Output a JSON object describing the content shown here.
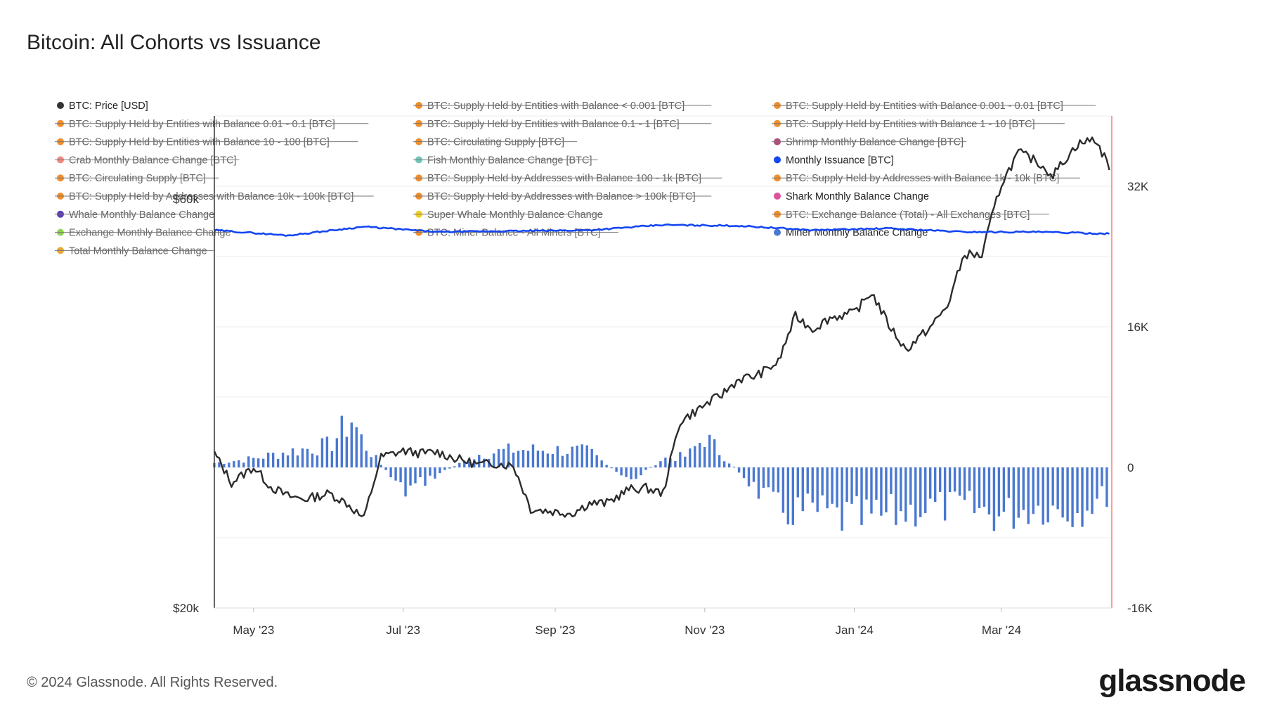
{
  "title": "Bitcoin: All Cohorts vs Issuance",
  "footer": "© 2024 Glassnode. All Rights Reserved.",
  "logo": "glassnode",
  "colors": {
    "price": "#2b2b2b",
    "issuance": "#1446f2",
    "miner_bars": "#4a78d0",
    "right_axis": "#f08080",
    "grid": "#ececec"
  },
  "legend": [
    {
      "label": "BTC: Price [USD]",
      "color": "#333333",
      "active": true
    },
    {
      "label": "BTC: Supply Held by Entities with Balance < 0.001 [BTC]",
      "color": "#f28e2b",
      "active": false
    },
    {
      "label": "BTC: Supply Held by Entities with Balance 0.001 - 0.01 [BTC]",
      "color": "#f28e2b",
      "active": false
    },
    {
      "label": "BTC: Supply Held by Entities with Balance 0.01 - 0.1 [BTC]",
      "color": "#f28e2b",
      "active": false
    },
    {
      "label": "BTC: Supply Held by Entities with Balance 0.1 - 1 [BTC]",
      "color": "#f28e2b",
      "active": false
    },
    {
      "label": "BTC: Supply Held by Entities with Balance 1 - 10 [BTC]",
      "color": "#f28e2b",
      "active": false
    },
    {
      "label": "BTC: Supply Held by Entities with Balance 10 - 100 [BTC]",
      "color": "#f28e2b",
      "active": false
    },
    {
      "label": "BTC: Circulating Supply [BTC]",
      "color": "#f28e2b",
      "active": false
    },
    {
      "label": "Shrimp Monthly Balance Change [BTC]",
      "color": "#b5487a",
      "active": false
    },
    {
      "label": "Crab Monthly Balance Change [BTC]",
      "color": "#f08a80",
      "active": false
    },
    {
      "label": "Fish Monthly Balance Change [BTC]",
      "color": "#6fc7b8",
      "active": false
    },
    {
      "label": "Monthly Issuance [BTC]",
      "color": "#1446f2",
      "active": true
    },
    {
      "label": "BTC: Circulating Supply [BTC]",
      "color": "#f28e2b",
      "active": false
    },
    {
      "label": "BTC: Supply Held by Addresses with Balance 100 - 1k [BTC]",
      "color": "#f28e2b",
      "active": false
    },
    {
      "label": "BTC: Supply Held by Addresses with Balance 1k - 10k [BTC]",
      "color": "#f28e2b",
      "active": false
    },
    {
      "label": "BTC: Supply Held by Addresses with Balance 10k - 100k [BTC]",
      "color": "#f28e2b",
      "active": false
    },
    {
      "label": "BTC: Supply Held by Addresses with Balance > 100k [BTC]",
      "color": "#f28e2b",
      "active": false
    },
    {
      "label": "Shark Monthly Balance Change",
      "color": "#e0509a",
      "active": true
    },
    {
      "label": "Whale Monthly Balance Change",
      "color": "#5b3fb5",
      "active": false
    },
    {
      "label": "Super Whale Monthly Balance Change",
      "color": "#f0d020",
      "active": false
    },
    {
      "label": "BTC: Exchange Balance (Total) - All Exchanges [BTC]",
      "color": "#f28e2b",
      "active": false
    },
    {
      "label": "Exchange Monthly Balance Change",
      "color": "#8fd14f",
      "active": false
    },
    {
      "label": "BTC: Miner Balance - All Miners [BTC]",
      "color": "#f28e2b",
      "active": false
    },
    {
      "label": "Miner Monthly Balance Change",
      "color": "#4a78d0",
      "active": true
    },
    {
      "label": "Total Monthly Balance Change",
      "color": "#e8a838",
      "active": false
    }
  ],
  "chart_data": {
    "type": "line",
    "title": "Bitcoin: All Cohorts vs Issuance",
    "x_ticks": [
      "May '23",
      "Jul '23",
      "Sep '23",
      "Nov '23",
      "Jan '24",
      "Mar '24"
    ],
    "x_range": [
      "2023-04-15",
      "2024-04-15"
    ],
    "left_axis": {
      "scale": "log",
      "ticks": [
        "$20k",
        "$60k"
      ],
      "ylim": [
        20000,
        75000
      ]
    },
    "right_axis": {
      "scale": "linear",
      "ticks": [
        "-16K",
        "0",
        "16K",
        "32K"
      ],
      "ylim": [
        -16000,
        40000
      ]
    },
    "grid": true,
    "series": [
      {
        "name": "BTC: Price [USD]",
        "axis": "left",
        "style": "line",
        "x": [
          "2023-04-15",
          "2023-04-22",
          "2023-05-01",
          "2023-05-08",
          "2023-05-15",
          "2023-05-22",
          "2023-06-01",
          "2023-06-08",
          "2023-06-15",
          "2023-06-22",
          "2023-07-01",
          "2023-07-08",
          "2023-07-15",
          "2023-07-22",
          "2023-08-01",
          "2023-08-08",
          "2023-08-15",
          "2023-08-22",
          "2023-09-01",
          "2023-09-08",
          "2023-09-15",
          "2023-09-22",
          "2023-10-01",
          "2023-10-08",
          "2023-10-15",
          "2023-10-22",
          "2023-11-01",
          "2023-11-08",
          "2023-11-15",
          "2023-11-22",
          "2023-12-01",
          "2023-12-08",
          "2023-12-15",
          "2023-12-22",
          "2024-01-01",
          "2024-01-08",
          "2024-01-15",
          "2024-01-22",
          "2024-02-01",
          "2024-02-08",
          "2024-02-15",
          "2024-02-22",
          "2024-03-01",
          "2024-03-08",
          "2024-03-15",
          "2024-03-22",
          "2024-04-01",
          "2024-04-08",
          "2024-04-14"
        ],
        "values": [
          30300,
          28000,
          29200,
          27700,
          27000,
          26800,
          27200,
          26500,
          25400,
          30000,
          30500,
          30300,
          30400,
          29900,
          29400,
          29500,
          29300,
          26100,
          25900,
          25800,
          26500,
          26500,
          27500,
          27600,
          27200,
          33000,
          34500,
          35500,
          37000,
          37300,
          38700,
          43800,
          42300,
          43600,
          44200,
          46700,
          42800,
          40000,
          42500,
          45000,
          51800,
          51500,
          62500,
          68000,
          66500,
          64000,
          69500,
          70500,
          65500
        ]
      },
      {
        "name": "Monthly Issuance [BTC]",
        "axis": "right",
        "style": "line",
        "x": [
          "2023-04-15",
          "2023-05-15",
          "2023-06-15",
          "2023-07-15",
          "2023-08-15",
          "2023-09-15",
          "2023-10-15",
          "2023-11-15",
          "2023-12-15",
          "2024-01-15",
          "2024-02-15",
          "2024-03-15",
          "2024-04-14"
        ],
        "values": [
          27000,
          26400,
          27400,
          26800,
          26900,
          27000,
          27600,
          27500,
          27000,
          27200,
          26800,
          26800,
          26600
        ]
      },
      {
        "name": "Miner Monthly Balance Change",
        "axis": "right",
        "style": "bar",
        "x": [
          "2023-04-15",
          "2023-05-01",
          "2023-05-15",
          "2023-06-01",
          "2023-06-10",
          "2023-06-15",
          "2023-07-01",
          "2023-07-15",
          "2023-08-01",
          "2023-08-15",
          "2023-09-01",
          "2023-09-15",
          "2023-10-01",
          "2023-10-15",
          "2023-10-25",
          "2023-11-01",
          "2023-11-15",
          "2023-12-01",
          "2023-12-15",
          "2024-01-01",
          "2024-01-15",
          "2024-02-01",
          "2024-02-15",
          "2024-03-01",
          "2024-03-15",
          "2024-04-01",
          "2024-04-14"
        ],
        "values": [
          500,
          1000,
          1800,
          2500,
          5500,
          2700,
          -2800,
          -800,
          1500,
          2000,
          2000,
          1800,
          -1700,
          1000,
          1300,
          3500,
          -500,
          -5000,
          -5000,
          -6000,
          -5500,
          -4500,
          -4500,
          -5500,
          -4500,
          -5000,
          -3000
        ]
      }
    ]
  }
}
